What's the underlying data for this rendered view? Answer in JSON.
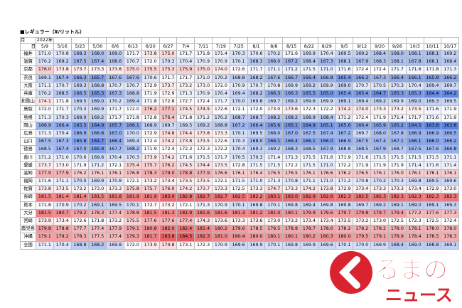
{
  "title": "■レギュラー（¥/リットル）",
  "header": {
    "month": "月",
    "day": "日",
    "year": "2022年",
    "dates": [
      "5/9",
      "5/16",
      "5/23",
      "5/30",
      "6/6",
      "6/13",
      "6/20",
      "6/27",
      "7/4",
      "7/11",
      "7/19",
      "7/25",
      "8/1",
      "8/8",
      "8/15",
      "8/22",
      "8/29",
      "9/5",
      "9/12",
      "9/20",
      "9/26",
      "10/3",
      "10/11",
      "10/17"
    ]
  },
  "rows": [
    {
      "pref": "福井",
      "values": [
        "171.0",
        "170.8",
        "168.3",
        "168.0",
        "169.0",
        "171.7",
        "173.8",
        "175.0",
        "171.7",
        "171.8",
        "171.4",
        "170.3",
        "170.6",
        "170.2",
        "171.6",
        "169.9",
        "170.4",
        "169.5",
        "169.2",
        "168.4",
        "168.0",
        "168.1",
        "168.1",
        "169.2"
      ]
    },
    {
      "pref": "滋賀",
      "values": [
        "170.2",
        "169.2",
        "167.5",
        "167.4",
        "168.6",
        "170.7",
        "172.0",
        "170.3",
        "170.4",
        "170.9",
        "170.9",
        "170.1",
        "168.3",
        "168.0",
        "167.2",
        "168.4",
        "167.3",
        "168.1",
        "167.9",
        "168.3",
        "168.1",
        "167.8",
        "168.1",
        "168.4"
      ]
    },
    {
      "pref": "京都",
      "values": [
        "176.0",
        "173.8",
        "173.7",
        "173.3",
        "173.8",
        "175.0",
        "175.5",
        "175.3",
        "175.9",
        "175.0",
        "174.0",
        "172.6",
        "171.7",
        "171.1",
        "171.2",
        "171.5",
        "171.0",
        "171.6",
        "172.4",
        "172.4",
        "171.7",
        "171.6",
        "171.8",
        "171.3"
      ]
    },
    {
      "pref": "奈良",
      "values": [
        "169.1",
        "167.4",
        "166.3",
        "165.7",
        "167.6",
        "167.6",
        "170.6",
        "171.7",
        "171.7",
        "171.0",
        "170.2",
        "168.8",
        "168.2",
        "167.6",
        "166.7",
        "166.4",
        "166.8",
        "165.4",
        "166.3",
        "167.3",
        "166.4",
        "166.1",
        "165.8",
        "166.2"
      ]
    },
    {
      "pref": "大阪",
      "values": [
        "171.1",
        "170.7",
        "169.3",
        "168.8",
        "170.7",
        "170.7",
        "172.9",
        "173.7",
        "173.2",
        "173.0",
        "172.0",
        "170.9",
        "170.7",
        "170.8",
        "169.9",
        "169.2",
        "169.9",
        "169.0",
        "170.7",
        "170.5",
        "170.3",
        "170.4",
        "169.4",
        "169.7"
      ]
    },
    {
      "pref": "兵庫",
      "values": [
        "170.2",
        "168.5",
        "166.5",
        "165.3",
        "167.3",
        "168.8",
        "171.9",
        "172.9",
        "171.3",
        "170.9",
        "170.4",
        "169.4",
        "168.2",
        "166.3",
        "166.3",
        "165.5",
        "165.0",
        "165.4",
        "165.4",
        "164.7",
        "165.3",
        "165.3",
        "164.4",
        "164.2"
      ]
    },
    {
      "pref": "和歌山",
      "values": [
        "174.1",
        "171.8",
        "169.5",
        "169.0",
        "170.2",
        "169.4",
        "171.8",
        "172.8",
        "172.7",
        "172.4",
        "171.7",
        "170.0",
        "169.8",
        "169.7",
        "169.2",
        "169.6",
        "169.9",
        "169.1",
        "169.4",
        "169.2",
        "169.9",
        "169.0",
        "169.3",
        "169.5"
      ]
    },
    {
      "pref": "鳥取",
      "values": [
        "172.0",
        "171.7",
        "170.3",
        "169.9",
        "171.7",
        "172.0",
        "176.2",
        "177.1",
        "174.5",
        "174.5",
        "172.6",
        "172.1",
        "172.0",
        "173.0",
        "173.6",
        "172.3",
        "172.2",
        "174.2",
        "174.0",
        "173.3",
        "173.2",
        "173.5",
        "171.6",
        "171.9"
      ]
    },
    {
      "pref": "島根",
      "values": [
        "171.3",
        "170.3",
        "169.0",
        "169.2",
        "171.7",
        "171.8",
        "172.8",
        "176.4",
        "171.8",
        "171.2",
        "170.2",
        "168.7",
        "168.7",
        "168.2",
        "168.2",
        "168.9",
        "168.4",
        "171.2",
        "172.4",
        "171.9",
        "171.4",
        "171.7",
        "171.6",
        "171.9"
      ]
    },
    {
      "pref": "岡山",
      "values": [
        "166.9",
        "166.4",
        "165.3",
        "164.9",
        "165.7",
        "166.1",
        "168.9",
        "169.7",
        "169.5",
        "169.2",
        "168.8",
        "167.2",
        "166.4",
        "165.6",
        "165.1",
        "164.9",
        "165.1",
        "165.6",
        "166.4",
        "165.9",
        "165.2",
        "164.5",
        "163.8",
        "163.8"
      ]
    },
    {
      "pref": "広島",
      "values": [
        "171.3",
        "170.4",
        "166.9",
        "166.8",
        "167.0",
        "170.0",
        "172.9",
        "174.8",
        "174.4",
        "173.8",
        "173.3",
        "170.1",
        "169.5",
        "168.0",
        "167.0",
        "167.5",
        "167.4",
        "167.2",
        "169.7",
        "168.0",
        "167.8",
        "166.9",
        "166.9",
        "166.5"
      ]
    },
    {
      "pref": "山口",
      "values": [
        "167.5",
        "167.3",
        "165.8",
        "164.7",
        "166.4",
        "169.4",
        "172.4",
        "174.2",
        "173.8",
        "173.5",
        "172.6",
        "170.3",
        "168.0",
        "166.1",
        "166.4",
        "166.1",
        "166.0",
        "166.9",
        "167.5",
        "167.4",
        "167.1",
        "166.1",
        "166.0",
        "166.2"
      ]
    },
    {
      "pref": "徳島",
      "values": [
        "168.5",
        "167.4",
        "167.0",
        "165.9",
        "167.7",
        "168.2",
        "171.9",
        "172.4",
        "172.3",
        "172.3",
        "172.2",
        "170.4",
        "169.3",
        "169.2",
        "168.3",
        "168.5",
        "167.9",
        "168.8",
        "168.5",
        "167.9",
        "168.7",
        "167.5",
        "167.6",
        "166.8"
      ]
    },
    {
      "pref": "香川",
      "values": [
        "171.2",
        "171.0",
        "170.6",
        "169.6",
        "170.4",
        "170.3",
        "173.9",
        "174.2",
        "171.6",
        "171.5",
        "171.7",
        "170.5",
        "170.3",
        "171.4",
        "171.3",
        "171.5",
        "171.6",
        "171.9",
        "171.6",
        "171.5",
        "171.5",
        "171.5",
        "171.5",
        "171.1"
      ]
    },
    {
      "pref": "愛媛",
      "values": [
        "173.7",
        "173.0",
        "171.9",
        "171.2",
        "172.1",
        "175.4",
        "175.7",
        "176.2",
        "174.5",
        "174.4",
        "173.5",
        "172.8",
        "171.5",
        "171.5",
        "172.2",
        "171.5",
        "171.0",
        "172.2",
        "171.9",
        "171.9",
        "171.9",
        "171.4",
        "171.6",
        "171.4"
      ]
    },
    {
      "pref": "高知",
      "values": [
        "177.9",
        "177.9",
        "176.2",
        "176.1",
        "176.1",
        "176.8",
        "178.3",
        "179.0",
        "178.8",
        "177.9",
        "176.6",
        "176.1",
        "176.4",
        "176.5",
        "176.5",
        "176.1",
        "176.6",
        "176.2",
        "176.5",
        "176.1",
        "176.0",
        "176.1",
        "176.1",
        "176.1"
      ]
    },
    {
      "pref": "福岡",
      "values": [
        "171.6",
        "171.1",
        "170.0",
        "169.9",
        "170.8",
        "172.1",
        "173.2",
        "173.4",
        "173.5",
        "173.5",
        "172.1",
        "171.5",
        "171.0",
        "171.3",
        "170.8",
        "171.1",
        "171.0",
        "171.2",
        "170.8",
        "170.2",
        "170.3",
        "169.8",
        "169.5",
        "169.6"
      ]
    },
    {
      "pref": "佐賀",
      "values": [
        "173.8",
        "173.5",
        "173.2",
        "173.0",
        "173.3",
        "175.8",
        "175.7",
        "176.0",
        "174.2",
        "173.7",
        "173.3",
        "172.5",
        "173.3",
        "174.7",
        "173.3",
        "174.2",
        "173.8",
        "172.9",
        "173.4",
        "173.3",
        "173.3",
        "173.4",
        "172.9",
        "173.0"
      ]
    },
    {
      "pref": "長崎",
      "values": [
        "181.5",
        "181.4",
        "181.4",
        "181.5",
        "181.8",
        "181.9",
        "181.9",
        "183.0",
        "182.8",
        "182.7",
        "182.7",
        "182.5",
        "182.2",
        "183.1",
        "183.0",
        "182.9",
        "182.6",
        "182.3",
        "182.5",
        "182.3",
        "182.3",
        "182.3",
        "182.3",
        "182.3"
      ]
    },
    {
      "pref": "熊本",
      "values": [
        "171.8",
        "170.9",
        "170.2",
        "169.1",
        "169.5",
        "170.1",
        "172.7",
        "173.2",
        "172.1",
        "171.3",
        "170.9",
        "170.1",
        "169.8",
        "170.1",
        "169.8",
        "169.4",
        "169.8",
        "169.8",
        "169.7",
        "169.2",
        "169.1",
        "169.0",
        "169.1",
        "169.3"
      ]
    },
    {
      "pref": "大分",
      "values": [
        "181.5",
        "180.7",
        "179.2",
        "178.3",
        "177.4",
        "178.8",
        "181.5",
        "181.3",
        "181.9",
        "181.6",
        "181.6",
        "181.3",
        "181.2",
        "181.0",
        "180.1",
        "179.9",
        "179.6",
        "179.7",
        "179.8",
        "179.7",
        "179.4",
        "177.2",
        "177.6",
        "177.3"
      ]
    },
    {
      "pref": "宮崎",
      "values": [
        "173.9",
        "173.4",
        "172.6",
        "171.8",
        "173.2",
        "175.5",
        "177.6",
        "177.6",
        "177.4",
        "174.3",
        "173.6",
        "173.3",
        "173.6",
        "173.0",
        "173.2",
        "173.4",
        "173.4",
        "173.5",
        "173.2",
        "173.0",
        "172.5",
        "172.3",
        "172.5",
        "172.4"
      ]
    },
    {
      "pref": "鹿児島",
      "values": [
        "179.8",
        "178.8",
        "177.7",
        "177.4",
        "177.9",
        "179.1",
        "180.8",
        "182.0",
        "182.4",
        "181.4",
        "180.2",
        "179.6",
        "178.5",
        "178.5",
        "178.8",
        "178.7",
        "178.6",
        "178.2",
        "178.2",
        "178.2",
        "178.0",
        "178.1",
        "178.0",
        "178.0"
      ]
    },
    {
      "pref": "沖縄",
      "values": [
        "179.1",
        "179.2",
        "178.3",
        "177.5",
        "177.4",
        "179.3",
        "181.7",
        "183.8",
        "184.5",
        "182.3",
        "181.0",
        "180.4",
        "180.0",
        "180.1",
        "180.1",
        "180.2",
        "180.3",
        "180.0",
        "179.5",
        "179.1",
        "178.9",
        "178.4",
        "178.5",
        "178.3"
      ]
    },
    {
      "pref": "全国",
      "values": [
        "171.1",
        "170.4",
        "168.8",
        "168.2",
        "169.8",
        "172.0",
        "173.9",
        "174.8",
        "173.1",
        "172.3",
        "170.9",
        "169.6",
        "169.9",
        "170.1",
        "169.8",
        "169.9",
        "169.6",
        "170.1",
        "170.0",
        "169.9",
        "168.4",
        "169.0",
        "168.8",
        "169.1"
      ]
    }
  ],
  "logo": {
    "main": "るまの",
    "sub": "ニュース"
  }
}
